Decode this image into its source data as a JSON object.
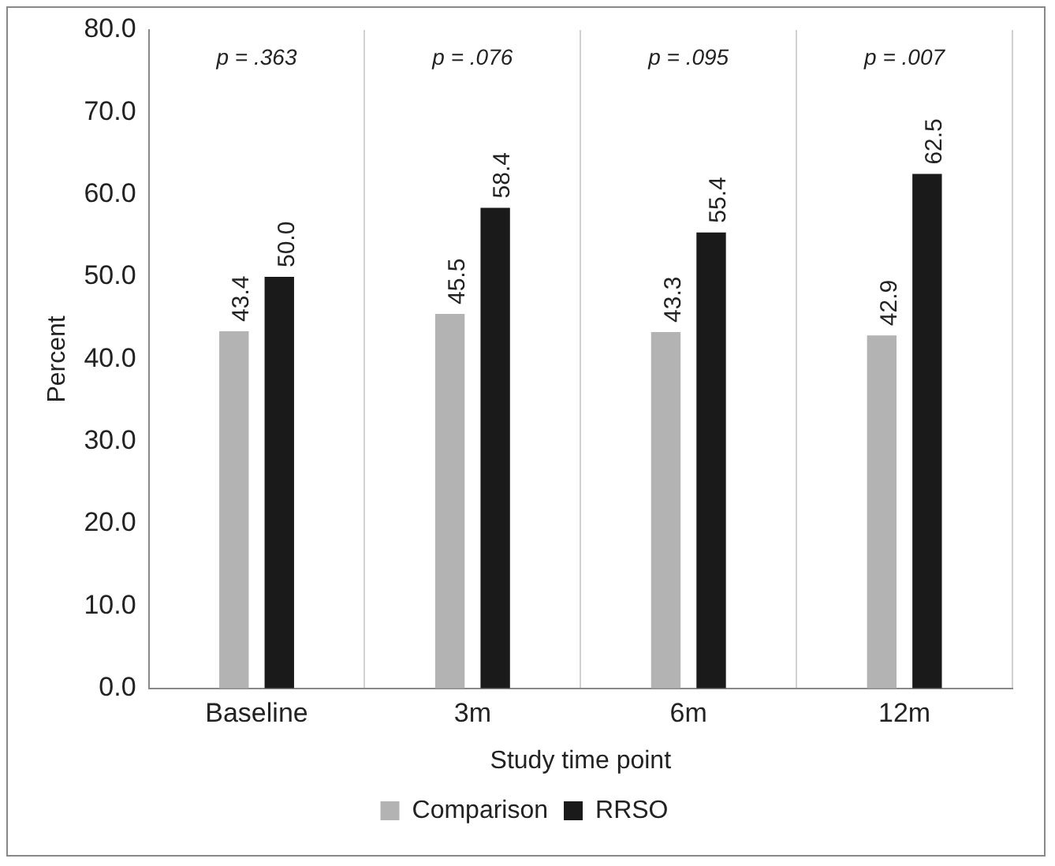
{
  "chart_data": {
    "type": "bar",
    "xlabel": "Study time point",
    "ylabel": "Percent",
    "categories": [
      "Baseline",
      "3m",
      "6m",
      "12m"
    ],
    "series": [
      {
        "name": "Comparison",
        "color": "#b3b3b3",
        "values": [
          43.4,
          45.5,
          43.3,
          42.9
        ],
        "value_labels": [
          "43.4",
          "45.5",
          "43.3",
          "42.9"
        ]
      },
      {
        "name": "RRSO",
        "color": "#1a1a1a",
        "values": [
          50.0,
          58.4,
          55.4,
          62.5
        ],
        "value_labels": [
          "50.0",
          "58.4",
          "55.4",
          "62.5"
        ]
      }
    ],
    "ylim": [
      0,
      80
    ],
    "yticks": [
      {
        "value": 0,
        "label": "0.0"
      },
      {
        "value": 10,
        "label": "10.0"
      },
      {
        "value": 20,
        "label": "20.0"
      },
      {
        "value": 30,
        "label": "30.0"
      },
      {
        "value": 40,
        "label": "40.0"
      },
      {
        "value": 50,
        "label": "50.0"
      },
      {
        "value": 60,
        "label": "60.0"
      },
      {
        "value": 70,
        "label": "70.0"
      },
      {
        "value": 80,
        "label": "80.0"
      }
    ],
    "annotations": [
      "p = .363",
      "p = .076",
      "p = .095",
      "p = .007"
    ],
    "grid": "x",
    "legend": "bottom"
  }
}
